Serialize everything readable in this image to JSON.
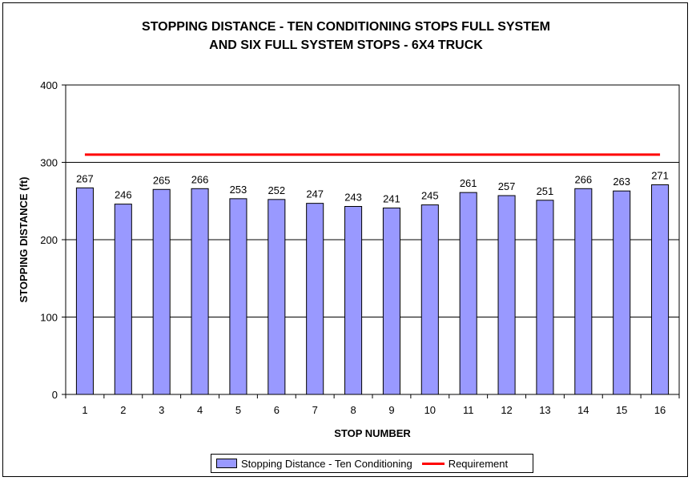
{
  "chart_data": {
    "type": "bar",
    "title_line1": "STOPPING DISTANCE - TEN CONDITIONING STOPS FULL SYSTEM",
    "title_line2": "AND SIX FULL SYSTEM STOPS - 6X4 TRUCK",
    "xlabel": "STOP NUMBER",
    "ylabel": "STOPPING DISTANCE (ft)",
    "ylim": [
      0,
      400
    ],
    "yticks": [
      0,
      100,
      200,
      300,
      400
    ],
    "categories": [
      "1",
      "2",
      "3",
      "4",
      "5",
      "6",
      "7",
      "8",
      "9",
      "10",
      "11",
      "12",
      "13",
      "14",
      "15",
      "16"
    ],
    "series": [
      {
        "name": "Stopping Distance - Ten Conditioning",
        "type": "bar",
        "color": "#9999ff",
        "values": [
          267,
          246,
          265,
          266,
          253,
          252,
          247,
          243,
          241,
          245,
          261,
          257,
          251,
          266,
          263,
          271
        ]
      },
      {
        "name": "Requirement",
        "type": "line",
        "color": "#ff0000",
        "values": [
          310,
          310,
          310,
          310,
          310,
          310,
          310,
          310,
          310,
          310,
          310,
          310,
          310,
          310,
          310,
          310
        ]
      }
    ],
    "grid": true,
    "legend_position": "bottom"
  }
}
